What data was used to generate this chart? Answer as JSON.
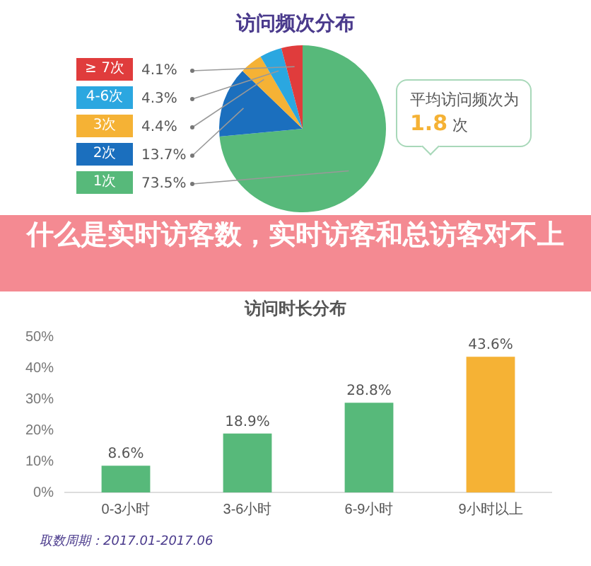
{
  "chart_data": [
    {
      "type": "pie",
      "title": "访问频次分布",
      "categories": [
        "1次",
        "2次",
        "3次",
        "4-6次",
        "≥ 7次"
      ],
      "values": [
        73.5,
        13.7,
        4.4,
        4.3,
        4.1
      ],
      "colors": [
        "#57b97a",
        "#1b6fbe",
        "#f5b235",
        "#2ba7e0",
        "#e03c3c"
      ],
      "value_labels": [
        "73.5%",
        "13.7%",
        "4.4%",
        "4.3%",
        "4.1%"
      ],
      "legend": "left",
      "annotations": [
        "平均访问频次为 1.8 次"
      ]
    },
    {
      "type": "bar",
      "title": "访问时长分布",
      "categories": [
        "0-3小时",
        "3-6小时",
        "6-9小时",
        "9小时以上"
      ],
      "values": [
        8.6,
        18.9,
        28.8,
        43.6
      ],
      "colors": [
        "#57b97a",
        "#57b97a",
        "#57b97a",
        "#f5b235"
      ],
      "value_labels": [
        "8.6%",
        "18.9%",
        "28.8%",
        "43.6%"
      ],
      "ylim": [
        0,
        50
      ],
      "yticks": [
        {
          "value": 0,
          "label": "0%"
        },
        {
          "value": 10,
          "label": "10%"
        },
        {
          "value": 20,
          "label": "20%"
        },
        {
          "value": 30,
          "label": "30%"
        },
        {
          "value": 40,
          "label": "40%"
        },
        {
          "value": 50,
          "label": "50%"
        }
      ],
      "grid": false,
      "annotations": [
        "什么是实时访客数，实时访客和总访客对不上",
        "取数周期：2017.01-2017.06"
      ]
    }
  ]
}
